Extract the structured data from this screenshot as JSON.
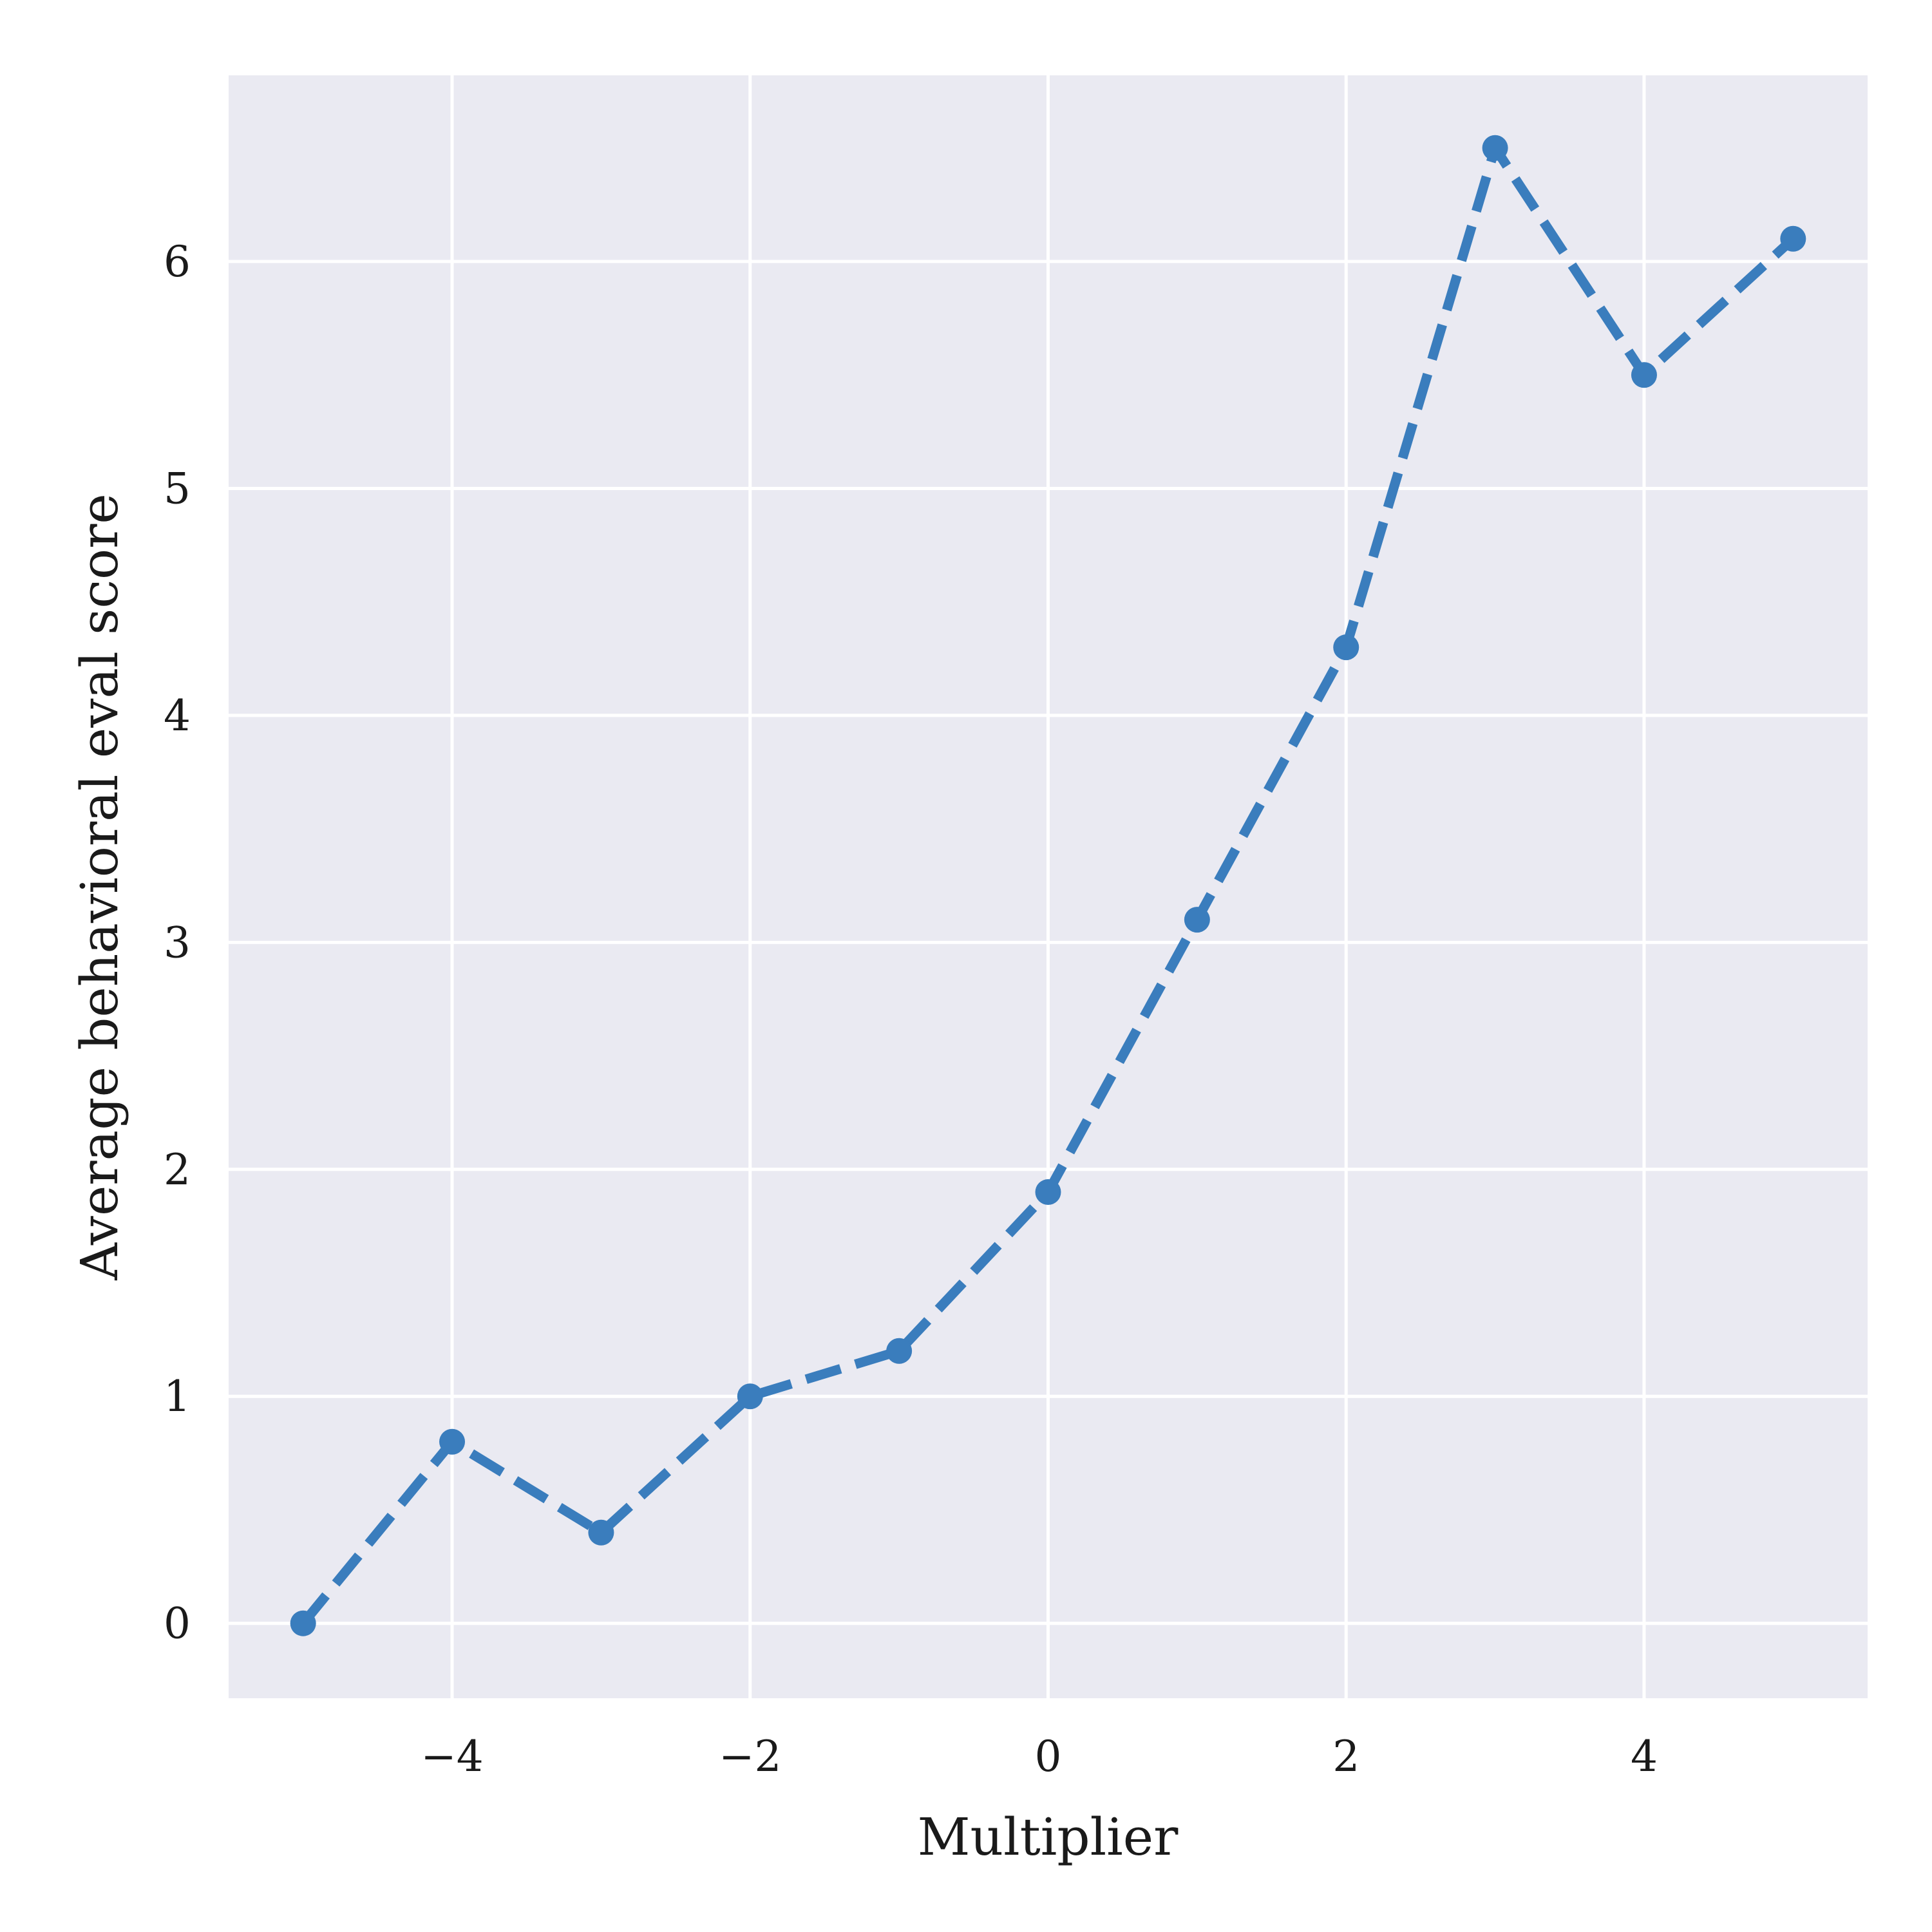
{
  "chart_data": {
    "type": "line",
    "title": "",
    "xlabel": "Multiplier",
    "ylabel": "Average behavioral eval score",
    "xlim": [
      -5.5,
      5.5
    ],
    "ylim": [
      -0.33,
      6.82
    ],
    "xticks": [
      -4,
      -2,
      0,
      2,
      4
    ],
    "xtick_labels": [
      "−4",
      "−2",
      "0",
      "2",
      "4"
    ],
    "yticks": [
      0,
      1,
      2,
      3,
      4,
      5,
      6
    ],
    "ytick_labels": [
      "0",
      "1",
      "2",
      "3",
      "4",
      "5",
      "6"
    ],
    "grid": true,
    "background": "#eaeaf2",
    "grid_color": "#ffffff",
    "series": [
      {
        "color": "#3a7dbd",
        "line_style": "dashed",
        "marker": "circle",
        "x": [
          -5,
          -4,
          -3,
          -2,
          -1,
          0,
          1,
          2,
          3,
          4,
          5
        ],
        "y": [
          0.0,
          0.8,
          0.4,
          1.0,
          1.2,
          1.9,
          3.1,
          4.3,
          6.5,
          5.5,
          6.1
        ]
      }
    ]
  }
}
